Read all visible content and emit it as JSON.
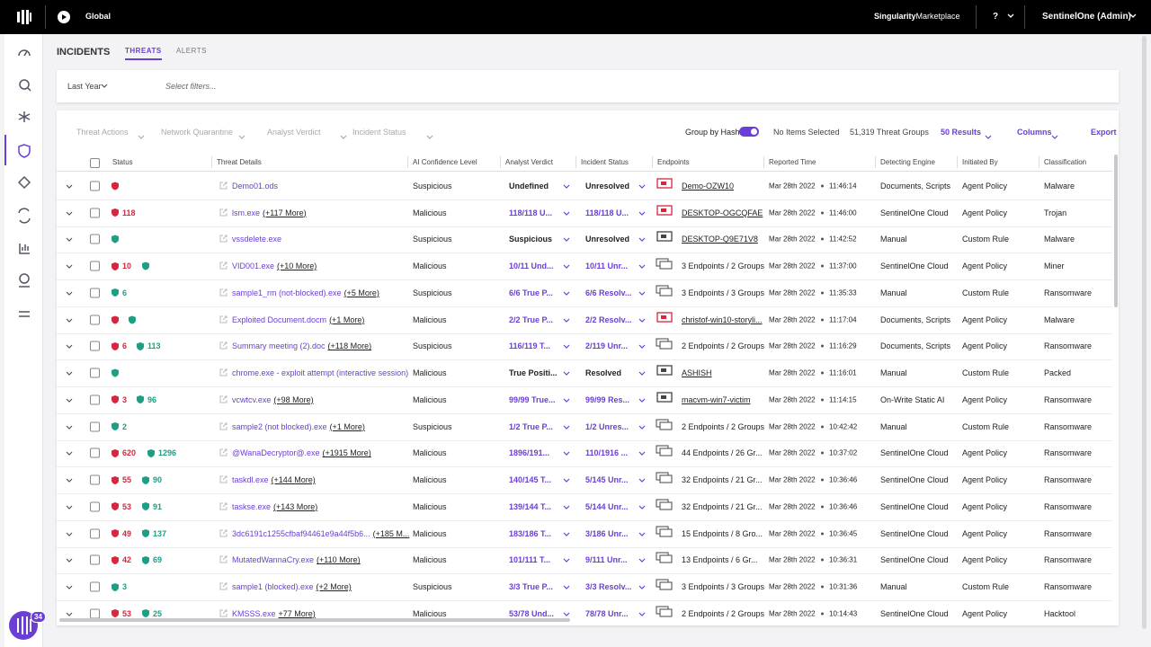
{
  "header": {
    "scope": "Global",
    "marketplace": [
      "Singularity",
      "Marketplace"
    ],
    "help": "?",
    "user": "SentinelOne (Admin)"
  },
  "sidebar": {
    "badge": 34
  },
  "page": {
    "title": "INCIDENTS",
    "tabs": [
      "THREATS",
      "ALERTS"
    ]
  },
  "filters": {
    "range": "Last Year",
    "placeholder": "Select filters..."
  },
  "toolbar": {
    "actions": [
      "Threat Actions",
      "Network Quarantine",
      "Analyst Verdict",
      "Incident Status"
    ],
    "group_by": "Group by Hash",
    "selection": "No Items Selected",
    "groups": "51,319 Threat Groups",
    "results": "50 Results",
    "columns": "Columns",
    "export": "Export"
  },
  "table": {
    "columns": [
      "Status",
      "Threat Details",
      "AI Confidence Level",
      "Analyst Verdict",
      "Incident Status",
      "Endpoints",
      "Reported Time",
      "Detecting Engine",
      "Initiated By",
      "Classification"
    ],
    "rows": [
      {
        "status": [
          {
            "color": "#d7263d"
          }
        ],
        "threat": "Demo01.ods",
        "ai": "Suspicious",
        "verdict": "Undefined",
        "incident": "Unresolved",
        "endpoint_icon": "single",
        "endpoint_alert": true,
        "endpoint": "Demo-OZW10",
        "date": "Mar 28th 2022",
        "time": "11:46:14",
        "engine": "Documents, Scripts",
        "initiated": "Agent Policy",
        "classification": "Malware"
      },
      {
        "status": [
          {
            "color": "#d7263d",
            "count": 118
          }
        ],
        "threat": "lsm.exe",
        "more": "(+117 More)",
        "ai": "Malicious",
        "verdict": "118/118 U...",
        "incident": "118/118 U...",
        "endpoint_icon": "single",
        "endpoint_alert": true,
        "endpoint": "DESKTOP-OGCQFAE",
        "date": "Mar 28th 2022",
        "time": "11:46:00",
        "engine": "SentinelOne Cloud",
        "initiated": "Agent Policy",
        "classification": "Trojan"
      },
      {
        "status": [
          {
            "color": "#1f9e86"
          }
        ],
        "threat": "vssdelete.exe",
        "ai": "Suspicious",
        "verdict": "Suspicious",
        "incident": "Unresolved",
        "endpoint_icon": "single",
        "endpoint": "DESKTOP-Q9E71V8",
        "date": "Mar 28th 2022",
        "time": "11:42:52",
        "engine": "Manual",
        "initiated": "Custom Rule",
        "classification": "Malware"
      },
      {
        "status": [
          {
            "color": "#d7263d",
            "count": 10
          },
          {
            "color": "#1f9e86"
          }
        ],
        "threat": "VID001.exe",
        "more": "(+10 More)",
        "ai": "Malicious",
        "verdict": "10/11 Und...",
        "incident": "10/11 Unr...",
        "endpoint_icon": "multi",
        "endpoint": "3 Endpoints / 2 Groups",
        "date": "Mar 28th 2022",
        "time": "11:37:00",
        "engine": "SentinelOne Cloud",
        "initiated": "Agent Policy",
        "classification": "Miner"
      },
      {
        "status": [
          {
            "color": "#1f9e86",
            "count": 6
          }
        ],
        "threat": "sample1_rm (not-blocked).exe",
        "more": "(+5 More)",
        "ai": "Suspicious",
        "verdict": "6/6 True P...",
        "incident": "6/6 Resolv...",
        "endpoint_icon": "multi",
        "endpoint": "3 Endpoints / 3 Groups",
        "date": "Mar 28th 2022",
        "time": "11:35:33",
        "engine": "Manual",
        "initiated": "Custom Rule",
        "classification": "Ransomware"
      },
      {
        "status": [
          {
            "color": "#d7263d"
          },
          {
            "color": "#1f9e86"
          }
        ],
        "threat": "Exploited Document.docm",
        "more": "(+1 More)",
        "ai": "Malicious",
        "verdict": "2/2 True P...",
        "incident": "2/2 Resolv...",
        "endpoint_icon": "single",
        "endpoint_alert": true,
        "endpoint": "christof-win10-storyli...",
        "date": "Mar 28th 2022",
        "time": "11:17:04",
        "engine": "Documents, Scripts",
        "initiated": "Agent Policy",
        "classification": "Malware"
      },
      {
        "status": [
          {
            "color": "#d7263d",
            "count": 6
          },
          {
            "color": "#1f9e86",
            "count": 113
          }
        ],
        "threat": "Summary meeting (2).doc",
        "more": "(+118 More)",
        "ai": "Suspicious",
        "verdict": "116/119 T...",
        "incident": "2/119 Unr...",
        "endpoint_icon": "multi",
        "endpoint": "2 Endpoints / 2 Groups",
        "date": "Mar 28th 2022",
        "time": "11:16:29",
        "engine": "Documents, Scripts",
        "initiated": "Agent Policy",
        "classification": "Ransomware"
      },
      {
        "status": [
          {
            "color": "#1f9e86"
          }
        ],
        "threat": "chrome.exe - exploit attempt (interactive session)",
        "ai": "Malicious",
        "verdict": "True Positi...",
        "incident": "Resolved",
        "endpoint_icon": "single",
        "endpoint": "ASHISH",
        "date": "Mar 28th 2022",
        "time": "11:16:01",
        "engine": "Manual",
        "initiated": "Custom Rule",
        "classification": "Packed"
      },
      {
        "status": [
          {
            "color": "#d7263d",
            "count": 3
          },
          {
            "color": "#1f9e86",
            "count": 96
          }
        ],
        "threat": "vcwtcv.exe",
        "more": "(+98 More)",
        "ai": "Malicious",
        "verdict": "99/99 True...",
        "incident": "99/99 Res...",
        "endpoint_icon": "single",
        "endpoint": "macvm-win7-victim",
        "date": "Mar 28th 2022",
        "time": "11:14:15",
        "engine": "On-Write Static AI",
        "initiated": "Agent Policy",
        "classification": "Ransomware"
      },
      {
        "status": [
          {
            "color": "#1f9e86",
            "count": 2
          }
        ],
        "threat": "sample2 (not blocked).exe",
        "more": "(+1 More)",
        "ai": "Suspicious",
        "verdict": "1/2 True P...",
        "incident": "1/2 Unres...",
        "endpoint_icon": "multi",
        "endpoint": "2 Endpoints / 2 Groups",
        "date": "Mar 28th 2022",
        "time": "10:42:42",
        "engine": "Manual",
        "initiated": "Custom Rule",
        "classification": "Ransomware"
      },
      {
        "status": [
          {
            "color": "#d7263d",
            "count": 620
          },
          {
            "color": "#1f9e86",
            "count": 1296
          }
        ],
        "threat": "@WanaDecryptor@.exe",
        "more": "(+1915 More)",
        "ai": "Malicious",
        "verdict": "1896/191...",
        "incident": "110/1916 ...",
        "endpoint_icon": "multi",
        "endpoint": "44 Endpoints / 26 Gr...",
        "date": "Mar 28th 2022",
        "time": "10:37:02",
        "engine": "SentinelOne Cloud",
        "initiated": "Agent Policy",
        "classification": "Ransomware"
      },
      {
        "status": [
          {
            "color": "#d7263d",
            "count": 55
          },
          {
            "color": "#1f9e86",
            "count": 90
          }
        ],
        "threat": "taskdl.exe",
        "more": "(+144 More)",
        "ai": "Malicious",
        "verdict": "140/145 T...",
        "incident": "5/145 Unr...",
        "endpoint_icon": "multi",
        "endpoint": "32 Endpoints / 21 Gr...",
        "date": "Mar 28th 2022",
        "time": "10:36:46",
        "engine": "SentinelOne Cloud",
        "initiated": "Agent Policy",
        "classification": "Ransomware"
      },
      {
        "status": [
          {
            "color": "#d7263d",
            "count": 53
          },
          {
            "color": "#1f9e86",
            "count": 91
          }
        ],
        "threat": "taskse.exe",
        "more": "(+143 More)",
        "ai": "Malicious",
        "verdict": "139/144 T...",
        "incident": "5/144 Unr...",
        "endpoint_icon": "multi",
        "endpoint": "32 Endpoints / 21 Gr...",
        "date": "Mar 28th 2022",
        "time": "10:36:46",
        "engine": "SentinelOne Cloud",
        "initiated": "Agent Policy",
        "classification": "Ransomware"
      },
      {
        "status": [
          {
            "color": "#d7263d",
            "count": 49
          },
          {
            "color": "#1f9e86",
            "count": 137
          }
        ],
        "threat": "3dc6191c1255cfbaf94461e9a44f5b6...",
        "more": "(+185 M...",
        "ai": "Malicious",
        "verdict": "183/186 T...",
        "incident": "3/186 Unr...",
        "endpoint_icon": "multi",
        "endpoint": "15 Endpoints / 8 Gro...",
        "date": "Mar 28th 2022",
        "time": "10:36:45",
        "engine": "SentinelOne Cloud",
        "initiated": "Agent Policy",
        "classification": "Ransomware"
      },
      {
        "status": [
          {
            "color": "#d7263d",
            "count": 42
          },
          {
            "color": "#1f9e86",
            "count": 69
          }
        ],
        "threat": "MutatedWannaCry.exe",
        "more": "(+110 More)",
        "ai": "Malicious",
        "verdict": "101/111 T...",
        "incident": "9/111 Unr...",
        "endpoint_icon": "multi",
        "endpoint": "13 Endpoints / 6 Gr...",
        "date": "Mar 28th 2022",
        "time": "10:36:31",
        "engine": "SentinelOne Cloud",
        "initiated": "Agent Policy",
        "classification": "Ransomware"
      },
      {
        "status": [
          {
            "color": "#1f9e86",
            "count": 3
          }
        ],
        "threat": "sample1 (blocked).exe",
        "more": "(+2 More)",
        "ai": "Suspicious",
        "verdict": "3/3 True P...",
        "incident": "3/3 Resolv...",
        "endpoint_icon": "multi",
        "endpoint": "3 Endpoints / 3 Groups",
        "date": "Mar 28th 2022",
        "time": "10:31:36",
        "engine": "Manual",
        "initiated": "Custom Rule",
        "classification": "Ransomware"
      },
      {
        "status": [
          {
            "color": "#d7263d",
            "count": 53
          },
          {
            "color": "#1f9e86",
            "count": 25
          }
        ],
        "threat": "KMSSS.exe",
        "more": "+77 More)",
        "ai": "Malicious",
        "verdict": "53/78 Und...",
        "incident": "78/78 Unr...",
        "endpoint_icon": "multi",
        "endpoint": "2 Endpoints / 2 Groups",
        "date": "Mar 28th 2022",
        "time": "10:14:43",
        "engine": "SentinelOne Cloud",
        "initiated": "Agent Policy",
        "classification": "Hacktool"
      }
    ]
  }
}
